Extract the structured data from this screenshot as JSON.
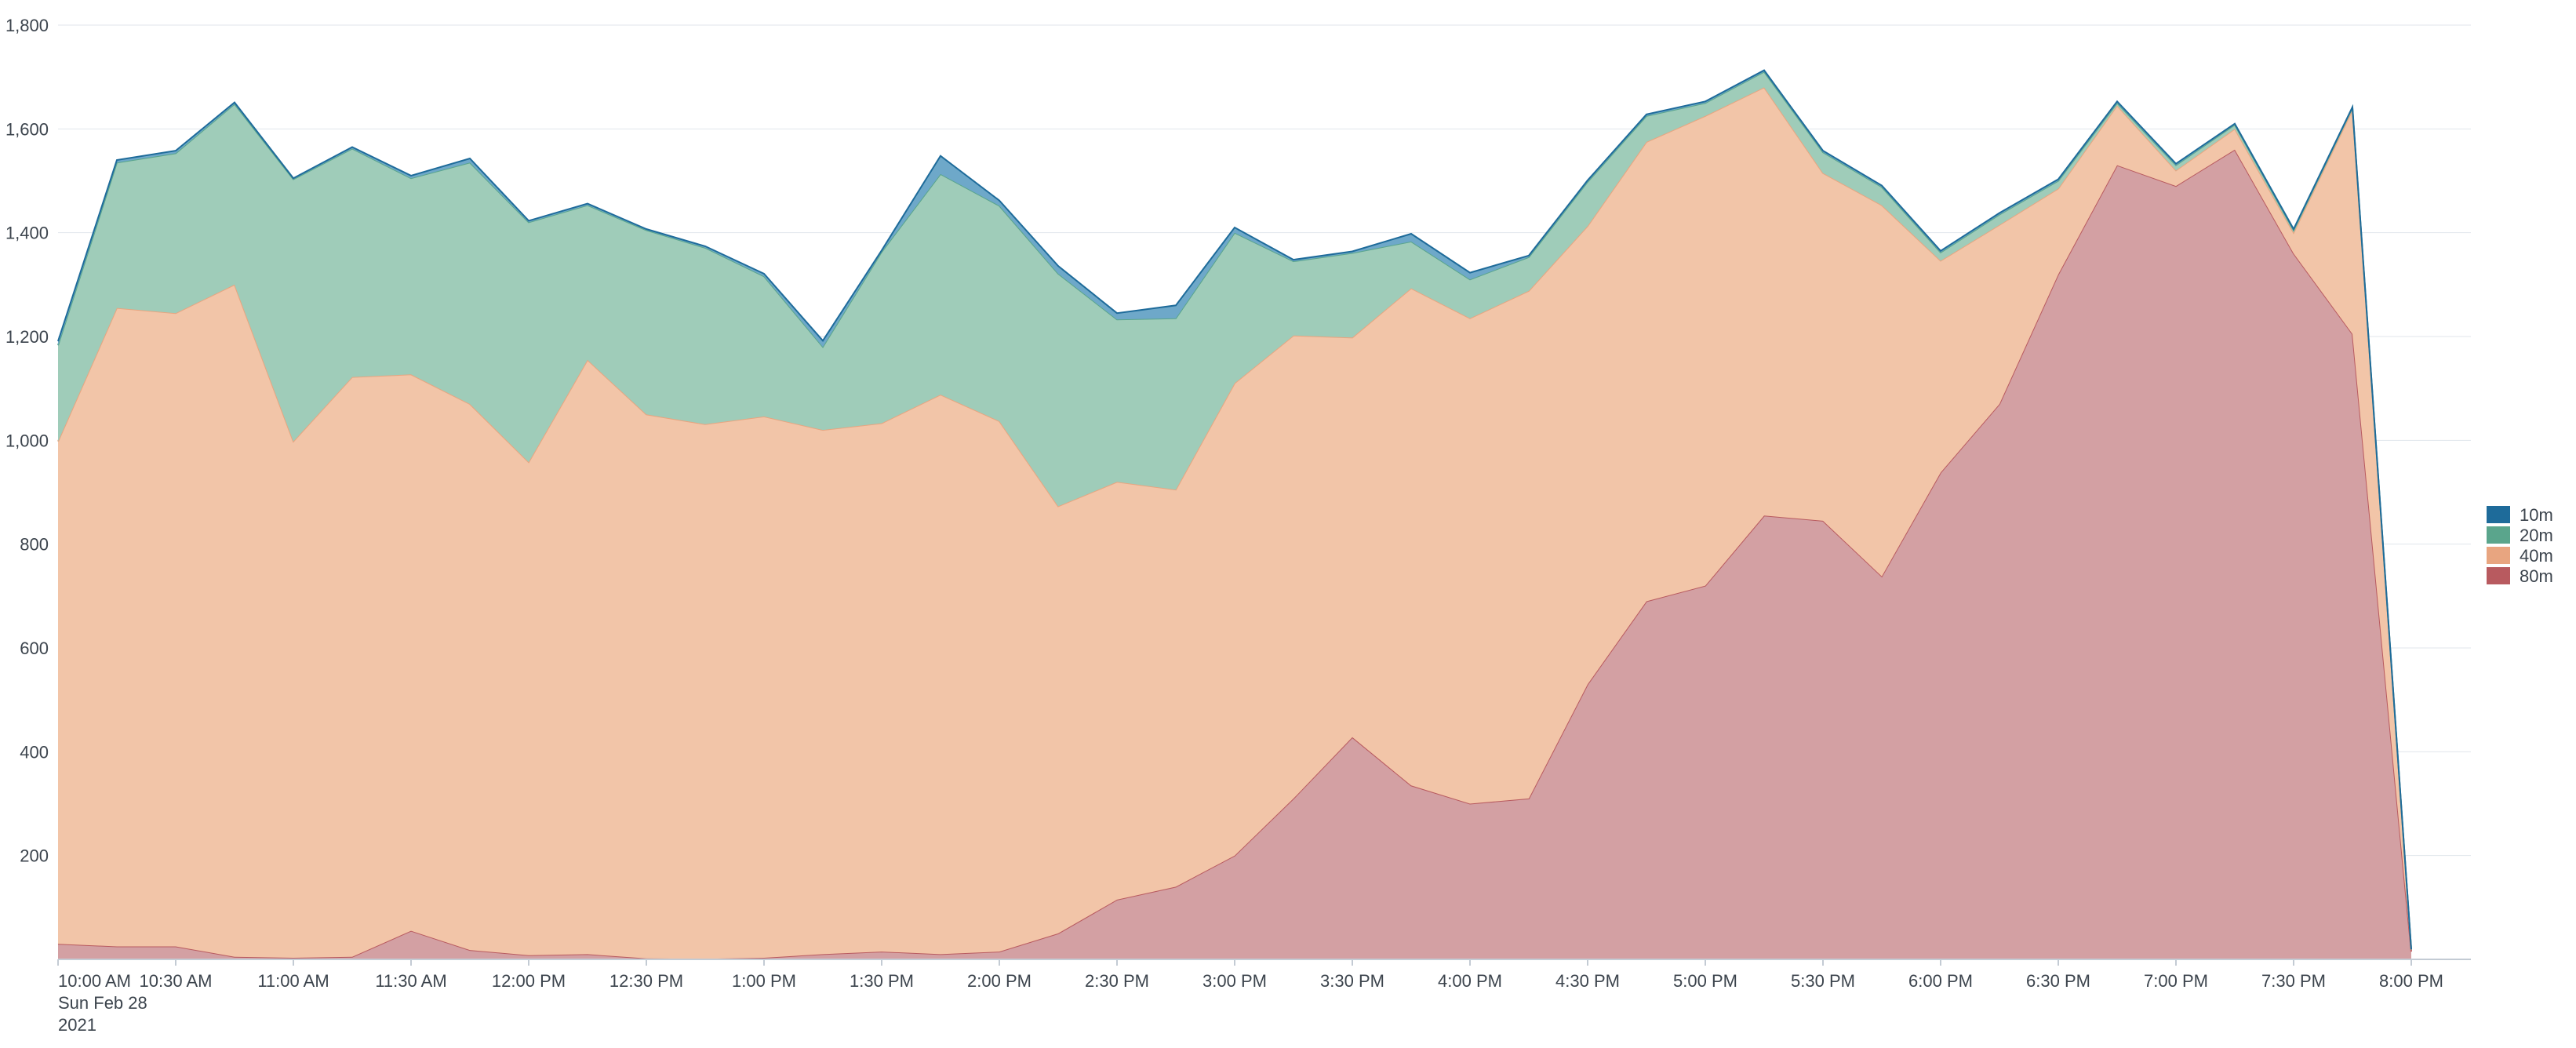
{
  "chart_data": {
    "type": "area",
    "stacked": true,
    "title": "",
    "xlabel": "",
    "ylabel": "",
    "ylim": [
      0,
      1800
    ],
    "y_ticks": [
      200,
      400,
      600,
      800,
      1000,
      1200,
      1400,
      1600,
      1800
    ],
    "y_tick_labels": [
      "200",
      "400",
      "600",
      "800",
      "1,000",
      "1,200",
      "1,400",
      "1,600",
      "1,800"
    ],
    "grid": true,
    "legend_position": "right",
    "x": [
      "10:00 AM",
      "10:15 AM",
      "10:30 AM",
      "10:45 AM",
      "11:00 AM",
      "11:15 AM",
      "11:30 AM",
      "11:45 AM",
      "12:00 PM",
      "12:15 PM",
      "12:30 PM",
      "12:45 PM",
      "1:00 PM",
      "1:15 PM",
      "1:30 PM",
      "1:45 PM",
      "2:00 PM",
      "2:15 PM",
      "2:30 PM",
      "2:45 PM",
      "3:00 PM",
      "3:15 PM",
      "3:30 PM",
      "3:45 PM",
      "4:00 PM",
      "4:15 PM",
      "4:30 PM",
      "4:45 PM",
      "5:00 PM",
      "5:15 PM",
      "5:30 PM",
      "5:45 PM",
      "6:00 PM",
      "6:15 PM",
      "6:30 PM",
      "6:45 PM",
      "7:00 PM",
      "7:15 PM",
      "7:30 PM",
      "7:45 PM",
      "8:00 PM"
    ],
    "x_tick_labels": [
      {
        "index": 0,
        "lines": [
          "10:00 AM",
          "Sun Feb 28",
          "2021"
        ]
      },
      {
        "index": 2,
        "lines": [
          "10:30 AM"
        ]
      },
      {
        "index": 4,
        "lines": [
          "11:00 AM"
        ]
      },
      {
        "index": 6,
        "lines": [
          "11:30 AM"
        ]
      },
      {
        "index": 8,
        "lines": [
          "12:00 PM"
        ]
      },
      {
        "index": 10,
        "lines": [
          "12:30 PM"
        ]
      },
      {
        "index": 12,
        "lines": [
          "1:00 PM"
        ]
      },
      {
        "index": 14,
        "lines": [
          "1:30 PM"
        ]
      },
      {
        "index": 16,
        "lines": [
          "2:00 PM"
        ]
      },
      {
        "index": 18,
        "lines": [
          "2:30 PM"
        ]
      },
      {
        "index": 20,
        "lines": [
          "3:00 PM"
        ]
      },
      {
        "index": 22,
        "lines": [
          "3:30 PM"
        ]
      },
      {
        "index": 24,
        "lines": [
          "4:00 PM"
        ]
      },
      {
        "index": 26,
        "lines": [
          "4:30 PM"
        ]
      },
      {
        "index": 28,
        "lines": [
          "5:00 PM"
        ]
      },
      {
        "index": 30,
        "lines": [
          "5:30 PM"
        ]
      },
      {
        "index": 32,
        "lines": [
          "6:00 PM"
        ]
      },
      {
        "index": 34,
        "lines": [
          "6:30 PM"
        ]
      },
      {
        "index": 36,
        "lines": [
          "7:00 PM"
        ]
      },
      {
        "index": 38,
        "lines": [
          "7:30 PM"
        ]
      },
      {
        "index": 40,
        "lines": [
          "8:00 PM"
        ]
      }
    ],
    "series": [
      {
        "name": "80m",
        "color": "#b85a5f",
        "fill": "#d3a0a3",
        "values": [
          30,
          25,
          25,
          5,
          3,
          5,
          55,
          18,
          8,
          10,
          2,
          1,
          3,
          10,
          15,
          10,
          15,
          50,
          115,
          140,
          200,
          310,
          428,
          335,
          300,
          310,
          530,
          690,
          720,
          855,
          845,
          738,
          938,
          1070,
          1320,
          1530,
          1490,
          1560,
          1360,
          1205,
          15
        ]
      },
      {
        "name": "40m",
        "color": "#e8a580",
        "fill": "#f2c5a8",
        "values": [
          968,
          1230,
          1220,
          1295,
          995,
          1117,
          1072,
          1052,
          950,
          1145,
          1048,
          1030,
          1043,
          1010,
          1018,
          1078,
          1022,
          823,
          805,
          765,
          910,
          892,
          770,
          958,
          935,
          978,
          883,
          885,
          905,
          825,
          670,
          715,
          408,
          345,
          165,
          115,
          30,
          40,
          40,
          432,
          3
        ]
      },
      {
        "name": "20m",
        "color": "#5aa58c",
        "fill": "#9fccb9",
        "values": [
          185,
          280,
          308,
          348,
          505,
          440,
          378,
          465,
          462,
          298,
          355,
          340,
          270,
          160,
          330,
          425,
          415,
          448,
          313,
          330,
          290,
          143,
          163,
          90,
          75,
          65,
          85,
          50,
          25,
          30,
          40,
          35,
          16,
          20,
          15,
          5,
          10,
          8,
          5,
          4,
          1
        ]
      },
      {
        "name": "10m",
        "color": "#1e6b9a",
        "fill": "#6ea8c9",
        "values": [
          8,
          5,
          5,
          3,
          2,
          3,
          5,
          8,
          3,
          3,
          2,
          3,
          5,
          12,
          3,
          35,
          10,
          15,
          12,
          25,
          10,
          3,
          3,
          15,
          13,
          3,
          3,
          3,
          3,
          3,
          3,
          3,
          3,
          3,
          3,
          3,
          3,
          2,
          2,
          1,
          0
        ]
      }
    ],
    "legend_order": [
      "10m",
      "20m",
      "40m",
      "80m"
    ]
  }
}
